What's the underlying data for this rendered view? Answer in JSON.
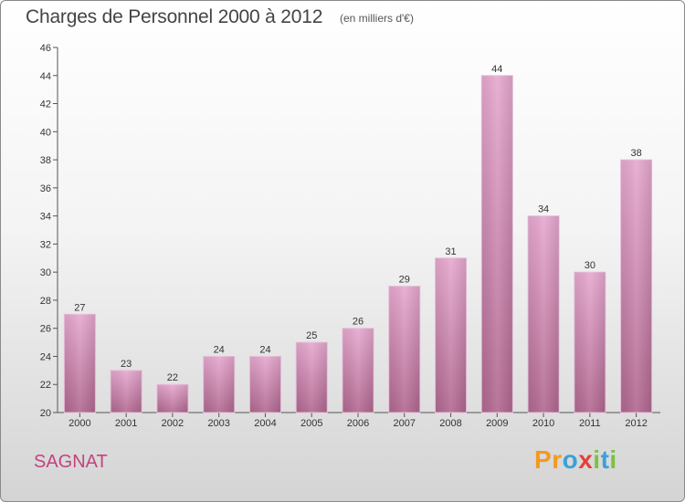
{
  "chart_data": {
    "type": "bar",
    "title": "Charges de Personnel 2000 à 2012",
    "subtitle": "(en milliers d'€)",
    "xlabel": "",
    "ylabel": "",
    "categories": [
      "2000",
      "2001",
      "2002",
      "2003",
      "2004",
      "2005",
      "2006",
      "2007",
      "2008",
      "2009",
      "2010",
      "2011",
      "2012"
    ],
    "values": [
      27,
      23,
      22,
      24,
      24,
      25,
      26,
      29,
      31,
      44,
      34,
      30,
      38
    ],
    "ylim": [
      20,
      46
    ],
    "yticks": [
      20,
      22,
      24,
      26,
      28,
      30,
      32,
      34,
      36,
      38,
      40,
      42,
      44,
      46
    ],
    "grid": false,
    "bar_color": "#c97aa9"
  },
  "place": "SAGNAT",
  "logo": {
    "letters": [
      "P",
      "r",
      "o",
      "x",
      "i",
      "t",
      "i"
    ],
    "colors": [
      "#f39a1e",
      "#f39a1e",
      "#3aa0d8",
      "#e5403b",
      "#7cc242",
      "#3aa0d8",
      "#7cc242"
    ]
  }
}
